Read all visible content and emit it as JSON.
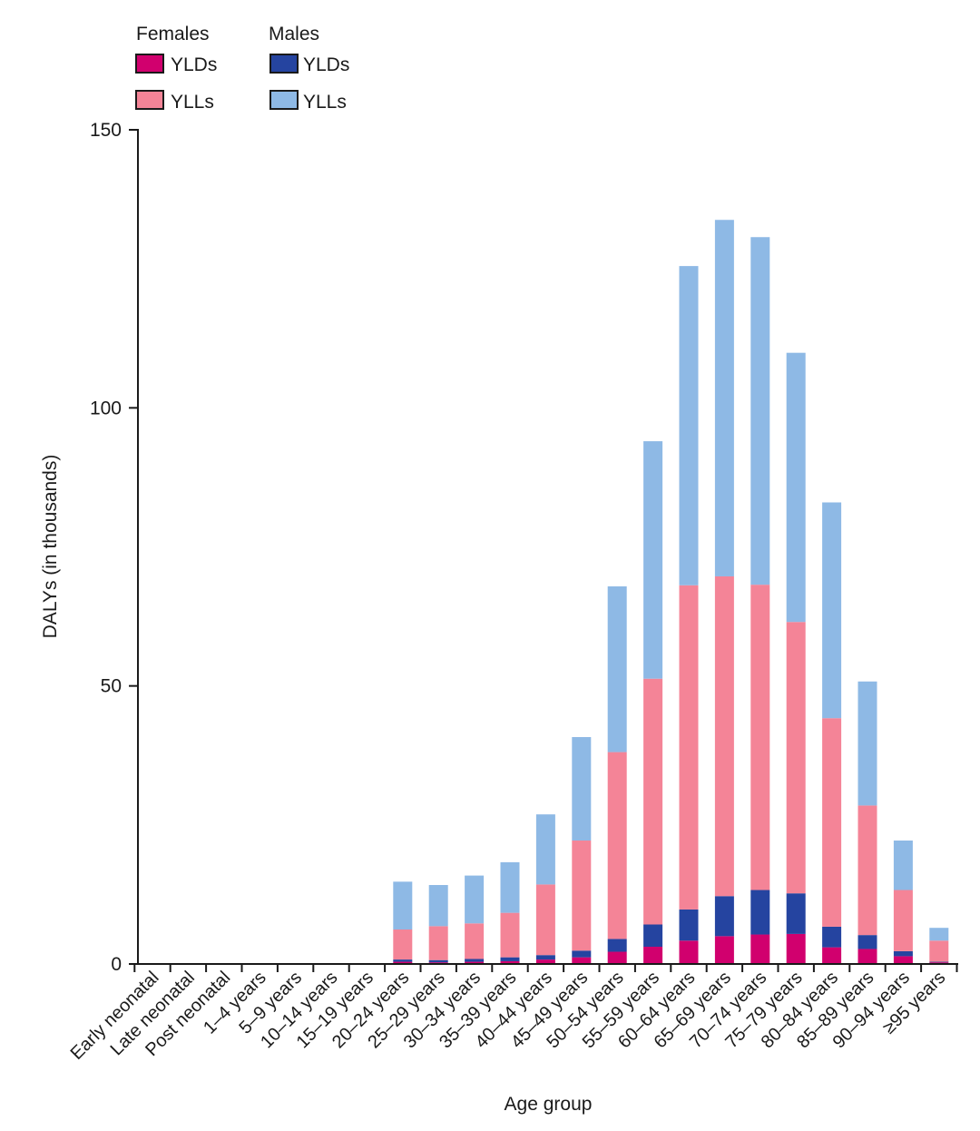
{
  "chart_data": {
    "type": "bar",
    "stacked": true,
    "xlabel": "Age group",
    "ylabel": "DALYs (in thousands)",
    "ylim": [
      0,
      150
    ],
    "yticks": [
      0,
      50,
      100,
      150
    ],
    "legend": {
      "placement": "top-left",
      "groups": [
        {
          "title": "Females",
          "items": [
            {
              "label": "YLDs",
              "series": "f_yld"
            },
            {
              "label": "YLLs",
              "series": "f_yll"
            }
          ]
        },
        {
          "title": "Males",
          "items": [
            {
              "label": "YLDs",
              "series": "m_yld"
            },
            {
              "label": "YLLs",
              "series": "m_yll"
            }
          ]
        }
      ]
    },
    "categories": [
      "Early neonatal",
      "Late neonatal",
      "Post neonatal",
      "1–4 years",
      "5–9 years",
      "10–14 years",
      "15–19 years",
      "20–24 years",
      "25–29 years",
      "30–34 years",
      "35–39 years",
      "40–44 years",
      "45–49 years",
      "50–54 years",
      "55–59 years",
      "60–64 years",
      "65–69 years",
      "70–74 years",
      "75–79 years",
      "80–84 years",
      "85–89 years",
      "90–94 years",
      "≥95 years"
    ],
    "series": [
      {
        "key": "f_yld",
        "color": "#d1006e",
        "values": [
          0,
          0,
          0,
          0,
          0,
          0,
          0,
          0.4,
          0.3,
          0.4,
          0.5,
          0.8,
          1.2,
          2.2,
          3.1,
          4.2,
          5.0,
          5.3,
          5.4,
          3.0,
          2.7,
          1.4,
          0.3
        ]
      },
      {
        "key": "m_yld",
        "color": "#2544a0",
        "values": [
          0,
          0,
          0,
          0,
          0,
          0,
          0,
          0.4,
          0.4,
          0.5,
          0.7,
          0.8,
          1.2,
          2.3,
          4.0,
          5.6,
          7.2,
          8.0,
          7.3,
          3.7,
          2.5,
          0.9,
          0.1
        ]
      },
      {
        "key": "f_yll",
        "color": "#f48497",
        "values": [
          0,
          0,
          0,
          0,
          0,
          0,
          0,
          5.4,
          6.1,
          6.4,
          8.0,
          12.7,
          19.8,
          33.6,
          44.2,
          58.3,
          57.5,
          54.9,
          48.8,
          37.5,
          23.3,
          11.0,
          3.8
        ]
      },
      {
        "key": "m_yll",
        "color": "#8eb9e5",
        "values": [
          0,
          0,
          0,
          0,
          0,
          0,
          0,
          8.6,
          7.4,
          8.6,
          9.1,
          12.6,
          18.6,
          29.8,
          42.7,
          57.4,
          64.1,
          62.5,
          48.4,
          38.8,
          22.3,
          8.9,
          2.3
        ]
      }
    ]
  }
}
